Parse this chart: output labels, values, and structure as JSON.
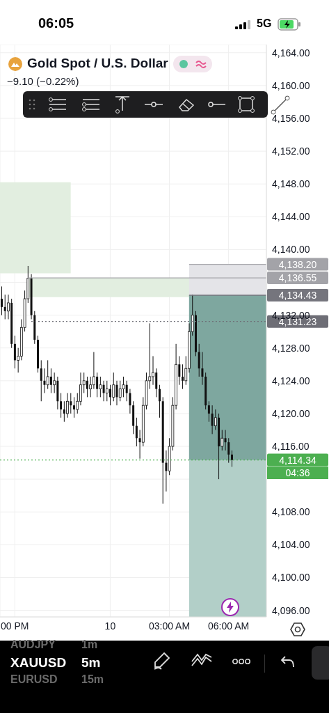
{
  "chart_data": {
    "type": "candlestick",
    "title": "Gold Spot / U.S. Dollar",
    "subtitle": "−9.10 (−0.22%)",
    "color": "#111111",
    "categories": [
      null,
      null,
      null,
      null,
      "00 PM",
      null,
      null,
      null,
      null,
      null,
      null,
      null,
      null,
      null,
      null,
      null,
      null,
      null,
      null,
      null,
      null,
      null,
      null,
      null,
      null,
      null,
      null,
      null,
      null,
      null,
      null,
      null,
      null,
      "10",
      null,
      null,
      null,
      null,
      null,
      null,
      null,
      null,
      null,
      null,
      null,
      null,
      null,
      null,
      null,
      null,
      null,
      "03:00 AM",
      null,
      null,
      null,
      null,
      null,
      null,
      null,
      null,
      null,
      null,
      null,
      null,
      null,
      null,
      null,
      null,
      null,
      "06:00 AM",
      null,
      null,
      null,
      null,
      null,
      null,
      null,
      null,
      null,
      null,
      null
    ],
    "ohlc": [
      [
        4134,
        4135.5,
        4132,
        4133
      ],
      [
        4133,
        4134.5,
        4131.5,
        4132.5
      ],
      [
        4132.5,
        4134.5,
        4131.5,
        4133.5
      ],
      [
        4133.5,
        4134,
        4128,
        4128.5
      ],
      [
        4128.5,
        4129.5,
        4125.5,
        4126.5
      ],
      [
        4126.5,
        4128,
        4125,
        4127
      ],
      [
        4127,
        4131.5,
        4126.5,
        4130.5
      ],
      [
        4130.5,
        4135,
        4130,
        4134
      ],
      [
        4134,
        4138,
        4133.5,
        4136.5
      ],
      [
        4136.5,
        4137,
        4131.5,
        4132
      ],
      [
        4132,
        4132.5,
        4128.5,
        4129
      ],
      [
        4129,
        4129.5,
        4125,
        4125.5
      ],
      [
        4125.5,
        4126.5,
        4121.5,
        4124
      ],
      [
        4124,
        4125.5,
        4122.5,
        4123.5
      ],
      [
        4123.5,
        4126.5,
        4123,
        4124.5
      ],
      [
        4124.5,
        4125.5,
        4122.5,
        4123.5
      ],
      [
        4123.5,
        4125,
        4122.5,
        4124
      ],
      [
        4124,
        4124.5,
        4120.5,
        4121.5
      ],
      [
        4121.5,
        4122.5,
        4119.5,
        4120.5
      ],
      [
        4120.5,
        4121.5,
        4119,
        4120
      ],
      [
        4120,
        4122.5,
        4119.5,
        4121.5
      ],
      [
        4121.5,
        4122.5,
        4120,
        4121
      ],
      [
        4121,
        4122,
        4119.5,
        4120.5
      ],
      [
        4120.5,
        4122.5,
        4120,
        4121.5
      ],
      [
        4121.5,
        4125,
        4121,
        4123.5
      ],
      [
        4123.5,
        4125,
        4122.5,
        4124
      ],
      [
        4124,
        4124.5,
        4122,
        4123
      ],
      [
        4123,
        4124.5,
        4122,
        4123.5
      ],
      [
        4123.5,
        4127.5,
        4123,
        4124.5
      ],
      [
        4124.5,
        4125,
        4122,
        4123
      ],
      [
        4123,
        4124.5,
        4122,
        4123.5
      ],
      [
        4123.5,
        4124,
        4121.5,
        4122.5
      ],
      [
        4122.5,
        4124,
        4121.5,
        4123
      ],
      [
        4123,
        4123.5,
        4121,
        4122
      ],
      [
        4122,
        4125,
        4121.5,
        4123.5
      ],
      [
        4123.5,
        4124,
        4121,
        4122
      ],
      [
        4122,
        4124,
        4121.5,
        4123
      ],
      [
        4123,
        4124.5,
        4122,
        4123.5
      ],
      [
        4123.5,
        4124,
        4121.5,
        4122.5
      ],
      [
        4122.5,
        4123,
        4120,
        4121
      ],
      [
        4121,
        4121.5,
        4117.5,
        4118.5
      ],
      [
        4118.5,
        4119.5,
        4116,
        4117
      ],
      [
        4117,
        4118,
        4114.5,
        4116.5
      ],
      [
        4116.5,
        4122,
        4116,
        4121
      ],
      [
        4121,
        4125,
        4120.5,
        4124
      ],
      [
        4124,
        4131,
        4123,
        4124.5
      ],
      [
        4124.5,
        4127,
        4123.5,
        4125
      ],
      [
        4125,
        4125.5,
        4122,
        4123
      ],
      [
        4123,
        4123.5,
        4119.5,
        4121.5
      ],
      [
        4121.5,
        4122,
        4109,
        4114
      ],
      [
        4114,
        4115.5,
        4110.5,
        4113
      ],
      [
        4113,
        4117,
        4112.5,
        4116
      ],
      [
        4116,
        4122,
        4115.5,
        4121
      ],
      [
        4121,
        4128.5,
        4120.5,
        4126
      ],
      [
        4126,
        4127,
        4123.5,
        4124.5
      ],
      [
        4124.5,
        4126,
        4123,
        4124
      ],
      [
        4124,
        4127,
        4123.5,
        4125.5
      ],
      [
        4125.5,
        4131,
        4125,
        4130
      ],
      [
        4130,
        4134.5,
        4129.5,
        4132
      ],
      [
        4132,
        4132.5,
        4127,
        4127.5
      ],
      [
        4127.5,
        4128.5,
        4124.5,
        4125.5
      ],
      [
        4125.5,
        4127.5,
        4123.5,
        4124.5
      ],
      [
        4124.5,
        4125,
        4120.5,
        4121
      ],
      [
        4121,
        4121.5,
        4119,
        4120
      ],
      [
        4120,
        4121,
        4117.5,
        4118.5
      ],
      [
        4118.5,
        4120.5,
        4118,
        4119.5
      ],
      [
        4119.5,
        4120,
        4112,
        4116
      ],
      [
        4116,
        4118,
        4115.5,
        4117
      ],
      [
        4117,
        4118,
        4115.5,
        4116.5
      ],
      [
        4116.5,
        4117,
        4114,
        4115
      ],
      [
        4115,
        4115.5,
        4113.5,
        4114.34
      ],
      null,
      null,
      null,
      null,
      null,
      null,
      null,
      null,
      null,
      null
    ],
    "ylim": [
      4095.2,
      4165
    ],
    "yticks": [
      {
        "value": 4096,
        "label": "4,096.00"
      },
      {
        "value": 4100,
        "label": "4,100.00"
      },
      {
        "value": 4104,
        "label": "4,104.00"
      },
      {
        "value": 4108,
        "label": "4,108.00"
      },
      {
        "value": 4112,
        "label": null
      },
      {
        "value": 4116,
        "label": "4,116.00"
      },
      {
        "value": 4120,
        "label": "4,120.00"
      },
      {
        "value": 4124,
        "label": "4,124.00"
      },
      {
        "value": 4128,
        "label": "4,128.00"
      },
      {
        "value": 4132,
        "label": "4,132.00"
      },
      {
        "value": 4136,
        "label": null
      },
      {
        "value": 4140,
        "label": "4,140.00"
      },
      {
        "value": 4144,
        "label": "4,144.00"
      },
      {
        "value": 4148,
        "label": "4,148.00"
      },
      {
        "value": 4152,
        "label": "4,152.00"
      },
      {
        "value": 4156,
        "label": "4,156.00"
      },
      {
        "value": 4160,
        "label": "4,160.00"
      },
      {
        "value": 4164,
        "label": "4,164.00"
      }
    ],
    "grid": true,
    "bands": [
      {
        "axis": "y",
        "from": 4137.1,
        "to": 4148.2,
        "color": "#e2eee0"
      },
      {
        "axis": "y",
        "from": 4134.2,
        "to": 4136.55,
        "color": "#e2eee0"
      },
      {
        "axis": "y",
        "from": 4134.43,
        "to": 4138.2,
        "color": "#e4e4e8"
      },
      {
        "axis": "y",
        "from": 4095.2,
        "to": 4134.43,
        "color": "#b2cfc8"
      },
      {
        "axis": "y",
        "from": 4114.34,
        "to": 4134.43,
        "color": "#7ea79f"
      }
    ],
    "ref_lines": [
      {
        "axis": "y",
        "value": 4138.2,
        "label": "4,138.20",
        "color": "#a3a3a8",
        "line_style": "solid"
      },
      {
        "axis": "y",
        "value": 4136.55,
        "label": "4,136.55",
        "color": "#a3a3a8",
        "line_style": "solid"
      },
      {
        "axis": "y",
        "value": 4134.43,
        "label": "4,134.43",
        "color": "#75757d",
        "line_style": "solid"
      },
      {
        "axis": "y",
        "value": 4131.23,
        "label": "4,131.23",
        "color": "#6e6e76",
        "line_style": "dotted"
      },
      {
        "axis": "y",
        "value": 4114.34,
        "label": "4,114.34",
        "color": "#4caf50",
        "line_style": "dotted"
      }
    ],
    "annotations": [
      "06:05",
      "5G",
      "04:36",
      "AUDJPY",
      "1m",
      "XAUUSD",
      "5m",
      "EURUSD",
      "15m"
    ]
  }
}
